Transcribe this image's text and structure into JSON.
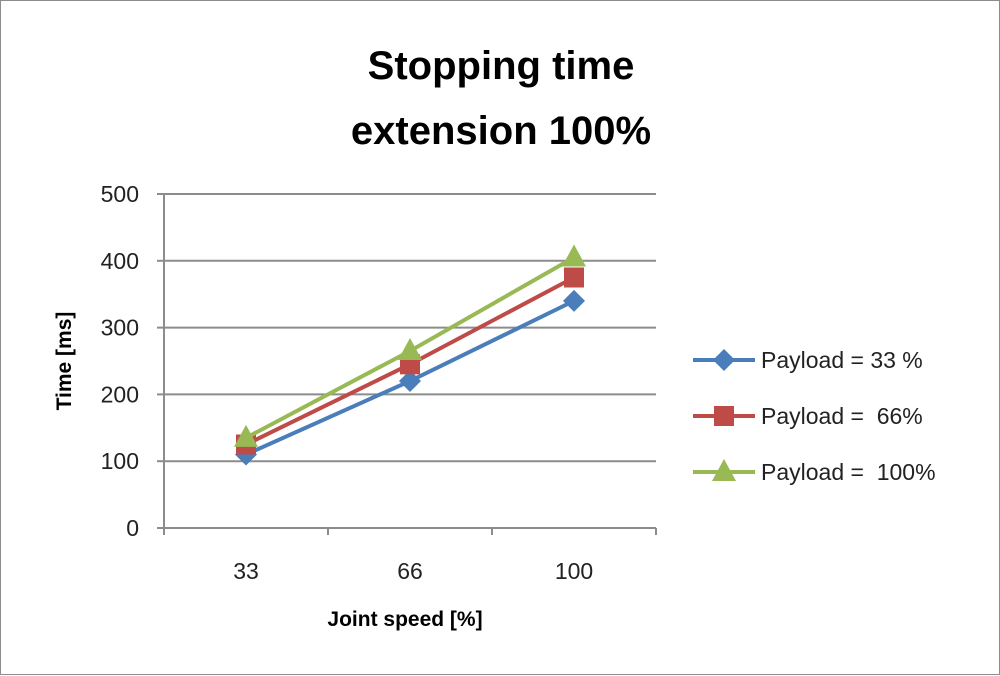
{
  "chart_data": {
    "type": "line",
    "title_lines": [
      "Stopping time",
      "extension 100%"
    ],
    "xlabel": "Joint speed [%]",
    "ylabel": "Time [ms]",
    "categories": [
      "33",
      "66",
      "100"
    ],
    "ylim": [
      0,
      500
    ],
    "yticks": [
      "0",
      "100",
      "200",
      "300",
      "400",
      "500"
    ],
    "grid": true,
    "legend_position": "right",
    "series": [
      {
        "name": "Payload = 33 %",
        "values": [
          110,
          220,
          340
        ],
        "color": "#4a7ebb",
        "marker": "diamond"
      },
      {
        "name": "Payload =  66%",
        "values": [
          125,
          245,
          375
        ],
        "color": "#be4b48",
        "marker": "square"
      },
      {
        "name": "Payload =  100%",
        "values": [
          135,
          265,
          405
        ],
        "color": "#98b954",
        "marker": "triangle"
      }
    ]
  }
}
